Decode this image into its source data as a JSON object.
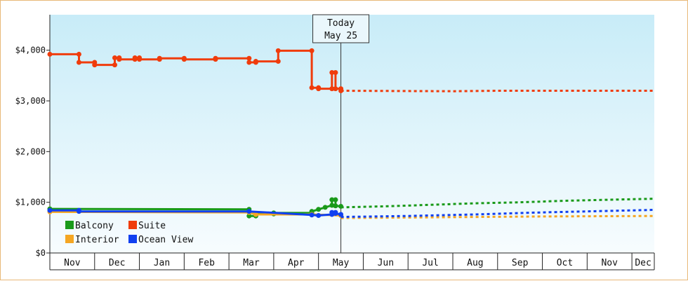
{
  "chart_data": {
    "type": "line",
    "y_ticks": [
      "$0",
      "$1,000",
      "$2,000",
      "$3,000",
      "$4,000"
    ],
    "ylim": [
      0,
      4700
    ],
    "months": [
      "Nov",
      "Dec",
      "Jan",
      "Feb",
      "Mar",
      "Apr",
      "May",
      "Jun",
      "Jul",
      "Aug",
      "Sep",
      "Oct",
      "Nov",
      "Dec"
    ],
    "today_marker": {
      "line1": "Today",
      "line2": "May 25",
      "x": 6.5
    },
    "legend": [
      {
        "label": "Balcony",
        "color": "#1a9a1a"
      },
      {
        "label": "Suite",
        "color": "#f03c0c"
      },
      {
        "label": "Interior",
        "color": "#f5a623"
      },
      {
        "label": "Ocean View",
        "color": "#1040f0"
      }
    ],
    "series": [
      {
        "name": "Suite",
        "color": "#f03c0c",
        "history": [
          [
            0,
            3920
          ],
          [
            0.65,
            3920
          ],
          [
            0.65,
            3760
          ],
          [
            1.0,
            3760
          ],
          [
            1.0,
            3710
          ],
          [
            1.45,
            3710
          ],
          [
            1.45,
            3850
          ],
          [
            1.55,
            3850
          ],
          [
            1.55,
            3820
          ],
          [
            1.9,
            3820
          ],
          [
            1.9,
            3850
          ],
          [
            2.0,
            3850
          ],
          [
            2.0,
            3820
          ],
          [
            2.45,
            3820
          ],
          [
            2.45,
            3840
          ],
          [
            3.0,
            3840
          ],
          [
            3.0,
            3820
          ],
          [
            3.7,
            3820
          ],
          [
            3.7,
            3840
          ],
          [
            4.45,
            3840
          ],
          [
            4.45,
            3760
          ],
          [
            4.6,
            3760
          ],
          [
            4.6,
            3780
          ],
          [
            5.1,
            3780
          ],
          [
            5.1,
            3990
          ],
          [
            5.85,
            3990
          ],
          [
            5.85,
            3260
          ],
          [
            6.0,
            3260
          ],
          [
            6.0,
            3240
          ],
          [
            6.3,
            3240
          ],
          [
            6.3,
            3560
          ],
          [
            6.38,
            3560
          ],
          [
            6.38,
            3240
          ],
          [
            6.5,
            3240
          ],
          [
            6.5,
            3200
          ]
        ],
        "forecast": [
          [
            6.5,
            3200
          ],
          [
            9.0,
            3190
          ],
          [
            10.0,
            3200
          ],
          [
            13.5,
            3200
          ]
        ]
      },
      {
        "name": "Balcony",
        "color": "#1a9a1a",
        "history": [
          [
            0,
            870
          ],
          [
            4.45,
            860
          ],
          [
            4.45,
            730
          ],
          [
            4.6,
            730
          ],
          [
            4.6,
            770
          ],
          [
            5.0,
            770
          ],
          [
            5.0,
            790
          ],
          [
            5.85,
            790
          ],
          [
            5.85,
            820
          ],
          [
            6.0,
            860
          ],
          [
            6.15,
            900
          ],
          [
            6.3,
            940
          ],
          [
            6.3,
            1050
          ],
          [
            6.38,
            1050
          ],
          [
            6.38,
            930
          ],
          [
            6.5,
            920
          ]
        ],
        "forecast": [
          [
            6.5,
            900
          ],
          [
            7.5,
            920
          ],
          [
            8.5,
            950
          ],
          [
            9.5,
            980
          ],
          [
            10.5,
            1000
          ],
          [
            11.5,
            1030
          ],
          [
            12.5,
            1050
          ],
          [
            13.5,
            1070
          ]
        ]
      },
      {
        "name": "Interior",
        "color": "#f5a623",
        "history": [
          [
            0,
            810
          ],
          [
            4.45,
            800
          ],
          [
            4.6,
            760
          ],
          [
            5.85,
            760
          ],
          [
            6.5,
            740
          ]
        ],
        "forecast": [
          [
            6.5,
            690
          ],
          [
            8.0,
            700
          ],
          [
            9.5,
            710
          ],
          [
            11.0,
            720
          ],
          [
            13.5,
            730
          ]
        ]
      },
      {
        "name": "Ocean View",
        "color": "#1040f0",
        "history": [
          [
            0,
            840
          ],
          [
            0.65,
            840
          ],
          [
            0.65,
            820
          ],
          [
            4.45,
            820
          ],
          [
            5.85,
            750
          ],
          [
            6.0,
            740
          ],
          [
            6.3,
            760
          ],
          [
            6.3,
            800
          ],
          [
            6.38,
            800
          ],
          [
            6.38,
            780
          ],
          [
            6.5,
            760
          ]
        ],
        "forecast": [
          [
            6.5,
            710
          ],
          [
            8.0,
            730
          ],
          [
            9.5,
            760
          ],
          [
            11.0,
            800
          ],
          [
            13.5,
            850
          ]
        ]
      }
    ]
  }
}
